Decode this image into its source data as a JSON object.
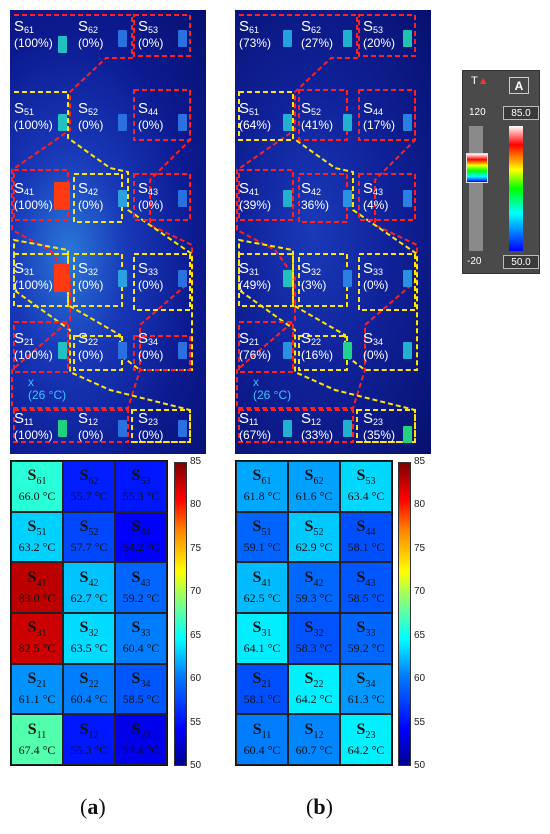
{
  "panels": [
    {
      "label": "a",
      "sensors": [
        {
          "id": "61",
          "pct": "(100%)"
        },
        {
          "id": "62",
          "pct": "(0%)"
        },
        {
          "id": "53",
          "pct": "(0%)"
        },
        {
          "id": "51",
          "pct": "(100%)"
        },
        {
          "id": "52",
          "pct": "(0%)"
        },
        {
          "id": "44",
          "pct": "(0%)"
        },
        {
          "id": "41",
          "pct": "(100%)"
        },
        {
          "id": "42",
          "pct": "(0%)"
        },
        {
          "id": "43",
          "pct": "(0%)"
        },
        {
          "id": "31",
          "pct": "(100%)"
        },
        {
          "id": "32",
          "pct": "(0%)"
        },
        {
          "id": "33",
          "pct": "(0%)"
        },
        {
          "id": "21",
          "pct": "(100%)"
        },
        {
          "id": "22",
          "pct": "(0%)"
        },
        {
          "id": "34",
          "pct": "(0%)"
        },
        {
          "id": "11",
          "pct": "(100%)"
        },
        {
          "id": "12",
          "pct": "(0%)"
        },
        {
          "id": "23",
          "pct": "(0%)"
        }
      ],
      "ambient": {
        "mark": "x",
        "temp": "(26 °C)"
      },
      "cells": [
        {
          "id": "61",
          "value": "66.0 °C",
          "temp": 66.0
        },
        {
          "id": "62",
          "value": "55.7 °C",
          "temp": 55.7
        },
        {
          "id": "53",
          "value": "55.3 °C",
          "temp": 55.3
        },
        {
          "id": "51",
          "value": "63.2 °C",
          "temp": 63.2
        },
        {
          "id": "52",
          "value": "57.7 °C",
          "temp": 57.7
        },
        {
          "id": "44",
          "value": "54.2 °C",
          "temp": 54.2
        },
        {
          "id": "41",
          "value": "83.0 °C",
          "temp": 83.0
        },
        {
          "id": "42",
          "value": "62.7 °C",
          "temp": 62.7
        },
        {
          "id": "43",
          "value": "59.2 °C",
          "temp": 59.2
        },
        {
          "id": "31",
          "value": "82.5 °C",
          "temp": 82.5
        },
        {
          "id": "32",
          "value": "63.5 °C",
          "temp": 63.5
        },
        {
          "id": "33",
          "value": "60.4 °C",
          "temp": 60.4
        },
        {
          "id": "21",
          "value": "61.1 °C",
          "temp": 61.1
        },
        {
          "id": "22",
          "value": "60.4 °C",
          "temp": 60.4
        },
        {
          "id": "34",
          "value": "58.5 °C",
          "temp": 58.5
        },
        {
          "id": "11",
          "value": "67.4 °C",
          "temp": 67.4
        },
        {
          "id": "12",
          "value": "55.3 °C",
          "temp": 55.3
        },
        {
          "id": "23",
          "value": "53.4 °C",
          "temp": 53.4
        }
      ]
    },
    {
      "label": "b",
      "sensors": [
        {
          "id": "61",
          "pct": "(73%)"
        },
        {
          "id": "62",
          "pct": "(27%)"
        },
        {
          "id": "53",
          "pct": "(20%)"
        },
        {
          "id": "51",
          "pct": "(64%)"
        },
        {
          "id": "52",
          "pct": "(41%)"
        },
        {
          "id": "44",
          "pct": "(17%)"
        },
        {
          "id": "41",
          "pct": "(39%)"
        },
        {
          "id": "42",
          "pct": "36%)"
        },
        {
          "id": "43",
          "pct": "(4%)"
        },
        {
          "id": "31",
          "pct": "(49%)"
        },
        {
          "id": "32",
          "pct": "(3%)"
        },
        {
          "id": "33",
          "pct": "(0%)"
        },
        {
          "id": "21",
          "pct": "(76%)"
        },
        {
          "id": "22",
          "pct": "(16%)"
        },
        {
          "id": "34",
          "pct": "(0%)"
        },
        {
          "id": "11",
          "pct": "(67%)"
        },
        {
          "id": "12",
          "pct": "(33%)"
        },
        {
          "id": "23",
          "pct": "(35%)"
        }
      ],
      "ambient": {
        "mark": "x",
        "temp": "(26 °C)"
      },
      "cells": [
        {
          "id": "61",
          "value": "61.8 °C",
          "temp": 61.8
        },
        {
          "id": "62",
          "value": "61.6 °C",
          "temp": 61.6
        },
        {
          "id": "53",
          "value": "63.4 °C",
          "temp": 63.4
        },
        {
          "id": "51",
          "value": "59.1 °C",
          "temp": 59.1
        },
        {
          "id": "52",
          "value": "62.9 °C",
          "temp": 62.9
        },
        {
          "id": "44",
          "value": "58.1 °C",
          "temp": 58.1
        },
        {
          "id": "41",
          "value": "62.5 °C",
          "temp": 62.5
        },
        {
          "id": "42",
          "value": "59.3 °C",
          "temp": 59.3
        },
        {
          "id": "43",
          "value": "58.5 °C",
          "temp": 58.5
        },
        {
          "id": "31",
          "value": "64.1 °C",
          "temp": 64.1
        },
        {
          "id": "32",
          "value": "58.3 °C",
          "temp": 58.3
        },
        {
          "id": "33",
          "value": "59.2 °C",
          "temp": 59.2
        },
        {
          "id": "21",
          "value": "58.1 °C",
          "temp": 58.1
        },
        {
          "id": "22",
          "value": "64.2 °C",
          "temp": 64.2
        },
        {
          "id": "34",
          "value": "61.3 °C",
          "temp": 61.3
        },
        {
          "id": "11",
          "value": "60.4 °C",
          "temp": 60.4
        },
        {
          "id": "12",
          "value": "60.7 °C",
          "temp": 60.7
        },
        {
          "id": "23",
          "value": "64.2 °C",
          "temp": 64.2
        }
      ]
    }
  ],
  "colorbar": {
    "min": 50,
    "max": 85,
    "ticks": [
      "85",
      "80",
      "75",
      "70",
      "65",
      "60",
      "55",
      "50"
    ]
  },
  "scale_widget": {
    "mode_label": "T",
    "mode_button": "A",
    "range_max": "120",
    "range_min": "-20",
    "level_high": "85.0",
    "level_low": "50.0"
  },
  "colors": {
    "hot_boundary": "#ff2020",
    "cold_boundary": "#ffe600"
  }
}
